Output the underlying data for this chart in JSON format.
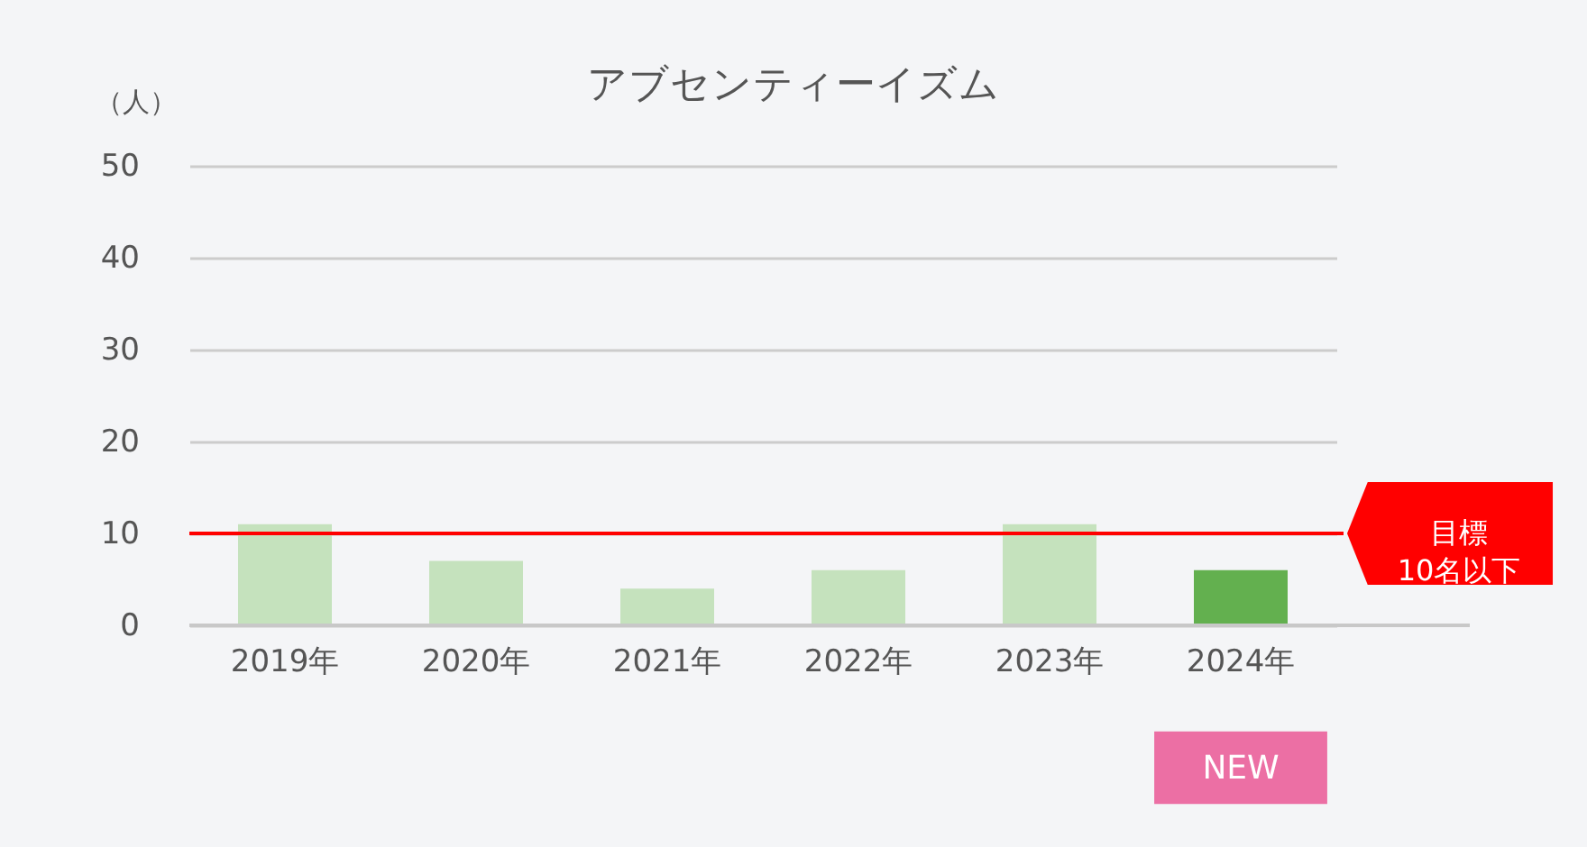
{
  "chart_data": {
    "type": "bar",
    "title": "アブセンティーイズム",
    "ylabel": "（人）",
    "categories": [
      "2019年",
      "2020年",
      "2021年",
      "2022年",
      "2023年",
      "2024年"
    ],
    "values": [
      11,
      7,
      4,
      6,
      11,
      6
    ],
    "colors": [
      "#c5e2bd",
      "#c5e2bd",
      "#c5e2bd",
      "#c5e2bd",
      "#c5e2bd",
      "#63b04f"
    ],
    "ylim": [
      0,
      50
    ],
    "yticks": [
      0,
      10,
      20,
      30,
      40,
      50
    ],
    "grid": "y",
    "ref_lines": [
      {
        "axis": "y",
        "value": 10,
        "label": "目標\n10名以下",
        "color": "#ff0000",
        "line_style": "solid"
      }
    ],
    "annotations": [
      "NEW"
    ]
  }
}
